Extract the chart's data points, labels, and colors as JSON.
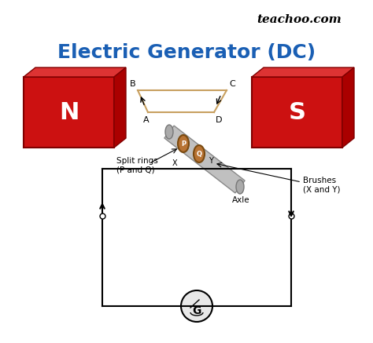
{
  "title": "Electric Generator (DC)",
  "title_color": "#1a5fb4",
  "watermark": "teachoo.com",
  "bg_color": "#ffffff",
  "magnet_N_label": "N",
  "magnet_S_label": "S",
  "magnet_color_face": "#cc0000",
  "magnet_color_dark": "#8b0000",
  "coil_labels": [
    "A",
    "B",
    "C",
    "D"
  ],
  "split_ring_label": "Split rings\n(P and Q)",
  "brush_label": "Brushes\n(X and Y)",
  "axle_label": "Axle",
  "x_label": "X",
  "y_label": "Y",
  "p_label": "P",
  "q_label": "Q"
}
